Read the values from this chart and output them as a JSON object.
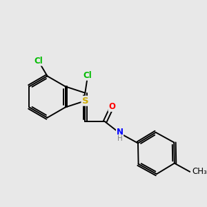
{
  "bg_color": "#e8e8e8",
  "atom_colors": {
    "C": "#000000",
    "Cl": "#00bb00",
    "S": "#ccaa00",
    "O": "#ff0000",
    "N": "#0000ff",
    "H": "#808080"
  },
  "bond_color": "#000000",
  "bond_width": 1.4,
  "font_size": 8.5,
  "figsize": [
    3.0,
    3.0
  ],
  "dpi": 100
}
